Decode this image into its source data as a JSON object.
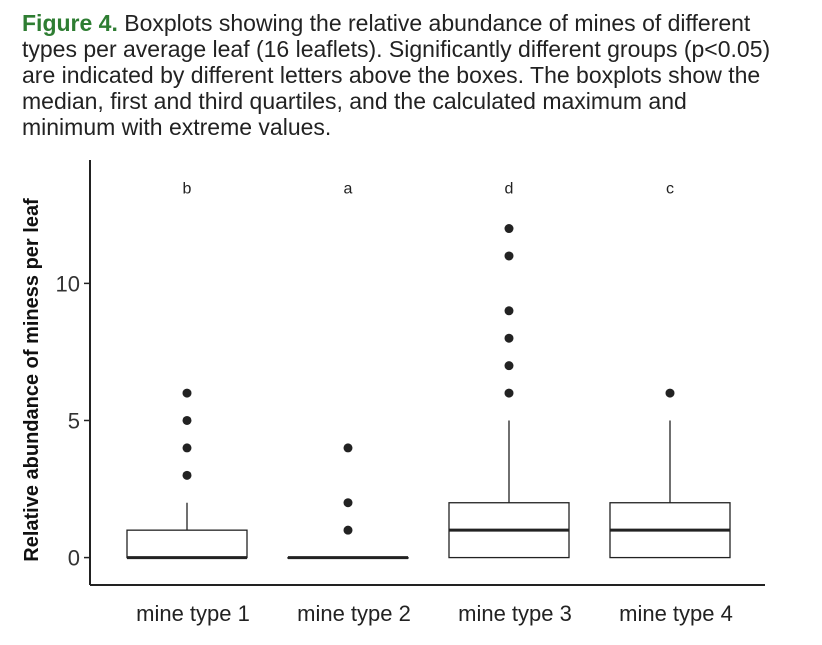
{
  "caption": {
    "label": "Figure 4.",
    "text": " Boxplots showing the relative abundance of mines of different types per average leaf (16 leaflets). Significantly different groups (p<0.05) are indicated by different letters above the boxes. The boxplots show the median, first and third quartiles, and the calculated maximum and minimum with extreme values."
  },
  "chart_data": {
    "type": "boxplot",
    "title": "",
    "xlabel": "",
    "ylabel": "Relative abundance of miness per leaf",
    "ylim": [
      -1,
      14.5
    ],
    "yticks": [
      0,
      5,
      10
    ],
    "grid": false,
    "categories": [
      "mine type 1",
      "mine type 2",
      "mine type 3",
      "mine type 4"
    ],
    "boxes": [
      {
        "category": "mine type 1",
        "min": 0,
        "q1": 0,
        "median": 0,
        "q3": 1,
        "max": 2,
        "outliers": [
          3,
          4,
          5,
          6
        ],
        "letter": "b"
      },
      {
        "category": "mine type 2",
        "min": 0,
        "q1": 0,
        "median": 0,
        "q3": 0,
        "max": 0,
        "outliers": [
          1,
          2,
          4
        ],
        "letter": "a"
      },
      {
        "category": "mine type 3",
        "min": 0,
        "q1": 0,
        "median": 1,
        "q3": 2,
        "max": 5,
        "outliers": [
          6,
          7,
          8,
          9,
          11,
          12
        ],
        "letter": "d"
      },
      {
        "category": "mine type 4",
        "min": 0,
        "q1": 0,
        "median": 1,
        "q3": 2,
        "max": 5,
        "outliers": [
          6
        ],
        "letter": "c"
      }
    ],
    "letter_y": 13.5
  }
}
